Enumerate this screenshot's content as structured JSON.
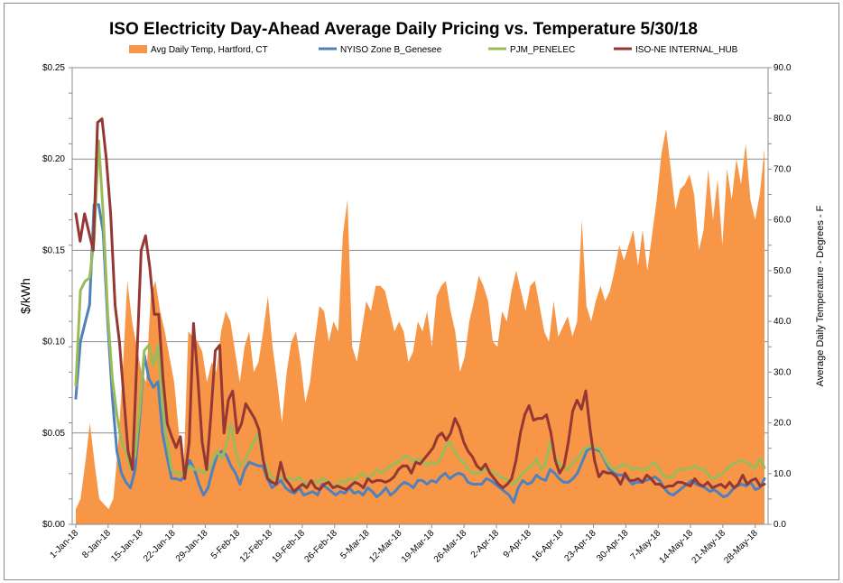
{
  "chart_data": {
    "type": "line",
    "title": "ISO Electricity Day-Ahead Average Daily Pricing vs. Temperature 5/30/18",
    "ylabel": "$/kWh",
    "y2label": "Average Daily Temperature - Degrees - F",
    "ylim": [
      0,
      0.25
    ],
    "y2lim": [
      0,
      90
    ],
    "yticks": [
      "$0.00",
      "$0.05",
      "$0.10",
      "$0.15",
      "$0.20",
      "$0.25"
    ],
    "y2ticks": [
      "0.0",
      "10.0",
      "20.0",
      "30.0",
      "40.0",
      "50.0",
      "60.0",
      "70.0",
      "80.0",
      "90.0"
    ],
    "xticks": [
      "1-Jan-18",
      "8-Jan-18",
      "15-Jan-18",
      "22-Jan-18",
      "29-Jan-18",
      "5-Feb-18",
      "12-Feb-18",
      "19-Feb-18",
      "26-Feb-18",
      "5-Mar-18",
      "12-Mar-18",
      "19-Mar-18",
      "26-Mar-18",
      "2-Apr-18",
      "9-Apr-18",
      "16-Apr-18",
      "23-Apr-18",
      "30-Apr-18",
      "7-May-18",
      "14-May-18",
      "21-May-18",
      "28-May-18"
    ],
    "x_start": "2018-01-01",
    "x_end": "2018-05-30",
    "grid": true,
    "legend_position": "top",
    "series": [
      {
        "name": "Avg Daily Temp, Hartford, CT",
        "kind": "area",
        "axis": "right",
        "color": "#f79646",
        "values": [
          3,
          5,
          12,
          20,
          12,
          5,
          4,
          3,
          5,
          15,
          30,
          48,
          40,
          35,
          30,
          28,
          45,
          48,
          42,
          38,
          33,
          28,
          18,
          10,
          38,
          37,
          36,
          34,
          28,
          32,
          30,
          38,
          42,
          40,
          34,
          28,
          35,
          38,
          30,
          32,
          38,
          45,
          35,
          28,
          20,
          30,
          36,
          38,
          32,
          24,
          28,
          36,
          43,
          42,
          36,
          40,
          38,
          57,
          64,
          35,
          32,
          38,
          44,
          42,
          47,
          47,
          46,
          42,
          38,
          40,
          38,
          32,
          34,
          40,
          38,
          42,
          35,
          45,
          47,
          48,
          42,
          38,
          30,
          33,
          40,
          44,
          49,
          47,
          44,
          36,
          35,
          42,
          40,
          46,
          50,
          46,
          42,
          47,
          48,
          43,
          38,
          36,
          44,
          37,
          39,
          41,
          37,
          40,
          60,
          43,
          40,
          44,
          47,
          44,
          46,
          50,
          55,
          52,
          55,
          58,
          51,
          58,
          50,
          57,
          64,
          73,
          78,
          70,
          62,
          66,
          67,
          69,
          65,
          54,
          58,
          70,
          60,
          68,
          55,
          70,
          64,
          72,
          67,
          75,
          64,
          60,
          65,
          74
        ],
        "display": "#f79646"
      },
      {
        "name": "NYISO Zone B_Genesee",
        "kind": "line",
        "axis": "left",
        "color": "#4f81bd",
        "values": [
          0.069,
          0.1,
          0.11,
          0.12,
          0.175,
          0.175,
          0.16,
          0.11,
          0.07,
          0.04,
          0.028,
          0.023,
          0.02,
          0.03,
          0.058,
          0.093,
          0.08,
          0.075,
          0.078,
          0.05,
          0.037,
          0.025,
          0.025,
          0.024,
          0.027,
          0.035,
          0.03,
          0.022,
          0.016,
          0.02,
          0.03,
          0.038,
          0.04,
          0.038,
          0.032,
          0.028,
          0.022,
          0.03,
          0.034,
          0.033,
          0.032,
          0.032,
          0.025,
          0.02,
          0.022,
          0.024,
          0.02,
          0.018,
          0.017,
          0.02,
          0.016,
          0.017,
          0.018,
          0.016,
          0.022,
          0.02,
          0.018,
          0.016,
          0.018,
          0.017,
          0.02,
          0.017,
          0.018,
          0.016,
          0.02,
          0.018,
          0.015,
          0.017,
          0.02,
          0.016,
          0.018,
          0.021,
          0.023,
          0.022,
          0.02,
          0.024,
          0.024,
          0.022,
          0.024,
          0.023,
          0.026,
          0.028,
          0.025,
          0.027,
          0.028,
          0.027,
          0.023,
          0.022,
          0.022,
          0.022,
          0.025,
          0.024,
          0.022,
          0.02,
          0.018,
          0.016,
          0.012,
          0.02,
          0.024,
          0.022,
          0.023,
          0.027,
          0.025,
          0.024,
          0.03,
          0.028,
          0.025,
          0.023,
          0.023,
          0.025,
          0.028,
          0.034,
          0.04,
          0.042,
          0.041,
          0.04,
          0.035,
          0.03,
          0.028,
          0.027,
          0.027,
          0.025,
          0.022,
          0.023,
          0.023,
          0.024,
          0.025,
          0.026,
          0.024,
          0.02,
          0.017,
          0.016,
          0.018,
          0.02,
          0.022,
          0.024,
          0.022,
          0.021,
          0.02,
          0.018,
          0.019,
          0.017,
          0.015,
          0.016,
          0.019,
          0.021,
          0.022,
          0.021,
          0.023,
          0.019,
          0.02,
          0.025
        ],
        "display": "#4f81bd"
      },
      {
        "name": "PJM_PENELEC",
        "kind": "line",
        "axis": "left",
        "color": "#9bbb59",
        "values": [
          0.076,
          0.128,
          0.133,
          0.135,
          0.155,
          0.21,
          0.17,
          0.115,
          0.08,
          0.06,
          0.045,
          0.04,
          0.03,
          0.038,
          0.063,
          0.095,
          0.098,
          0.087,
          0.098,
          0.065,
          0.045,
          0.03,
          0.028,
          0.028,
          0.027,
          0.032,
          0.03,
          0.03,
          0.028,
          0.03,
          0.035,
          0.04,
          0.036,
          0.043,
          0.055,
          0.04,
          0.032,
          0.035,
          0.04,
          0.045,
          0.05,
          0.036,
          0.03,
          0.025,
          0.025,
          0.026,
          0.025,
          0.025,
          0.024,
          0.026,
          0.023,
          0.022,
          0.024,
          0.023,
          0.025,
          0.024,
          0.022,
          0.02,
          0.024,
          0.023,
          0.025,
          0.024,
          0.026,
          0.028,
          0.025,
          0.027,
          0.03,
          0.028,
          0.03,
          0.032,
          0.033,
          0.035,
          0.037,
          0.037,
          0.034,
          0.036,
          0.035,
          0.032,
          0.034,
          0.033,
          0.036,
          0.042,
          0.045,
          0.04,
          0.036,
          0.034,
          0.03,
          0.028,
          0.028,
          0.029,
          0.03,
          0.029,
          0.028,
          0.026,
          0.025,
          0.024,
          0.022,
          0.025,
          0.028,
          0.03,
          0.032,
          0.036,
          0.03,
          0.033,
          0.045,
          0.038,
          0.033,
          0.031,
          0.03,
          0.034,
          0.036,
          0.04,
          0.042,
          0.043,
          0.042,
          0.041,
          0.036,
          0.032,
          0.03,
          0.031,
          0.033,
          0.032,
          0.03,
          0.031,
          0.03,
          0.03,
          0.032,
          0.034,
          0.03,
          0.026,
          0.026,
          0.026,
          0.03,
          0.03,
          0.03,
          0.031,
          0.032,
          0.03,
          0.03,
          0.026,
          0.025,
          0.027,
          0.028,
          0.031,
          0.033,
          0.034,
          0.035,
          0.034,
          0.032,
          0.031,
          0.036,
          0.031
        ],
        "display": "#9bbb59"
      },
      {
        "name": "ISO-NE INTERNAL_HUB",
        "kind": "line",
        "axis": "left",
        "color": "#953735",
        "values": [
          0.17,
          0.155,
          0.17,
          0.16,
          0.15,
          0.22,
          0.222,
          0.2,
          0.17,
          0.12,
          0.1,
          0.07,
          0.04,
          0.03,
          0.09,
          0.15,
          0.158,
          0.14,
          0.115,
          0.115,
          0.08,
          0.055,
          0.048,
          0.042,
          0.048,
          0.025,
          0.045,
          0.11,
          0.08,
          0.045,
          0.03,
          0.06,
          0.095,
          0.098,
          0.05,
          0.068,
          0.073,
          0.05,
          0.055,
          0.066,
          0.062,
          0.058,
          0.052,
          0.035,
          0.025,
          0.023,
          0.022,
          0.034,
          0.025,
          0.022,
          0.018,
          0.02,
          0.022,
          0.02,
          0.024,
          0.02,
          0.019,
          0.022,
          0.023,
          0.02,
          0.021,
          0.02,
          0.019,
          0.021,
          0.023,
          0.022,
          0.02,
          0.025,
          0.023,
          0.024,
          0.024,
          0.023,
          0.024,
          0.026,
          0.03,
          0.032,
          0.032,
          0.028,
          0.034,
          0.033,
          0.036,
          0.039,
          0.042,
          0.048,
          0.05,
          0.046,
          0.05,
          0.058,
          0.053,
          0.045,
          0.04,
          0.037,
          0.032,
          0.03,
          0.033,
          0.028,
          0.025,
          0.022,
          0.02,
          0.022,
          0.025,
          0.035,
          0.05,
          0.06,
          0.065,
          0.057,
          0.058,
          0.058,
          0.06,
          0.05,
          0.035,
          0.028,
          0.032,
          0.045,
          0.062,
          0.068,
          0.063,
          0.073,
          0.052,
          0.035,
          0.026,
          0.029,
          0.028,
          0.028,
          0.026,
          0.022,
          0.028,
          0.024,
          0.024,
          0.025,
          0.023,
          0.027,
          0.025,
          0.022,
          0.022,
          0.02,
          0.021,
          0.021,
          0.023,
          0.023,
          0.022,
          0.021,
          0.025,
          0.022,
          0.021,
          0.023,
          0.02,
          0.021,
          0.022,
          0.02,
          0.023,
          0.02,
          0.022,
          0.027,
          0.022,
          0.024,
          0.025,
          0.021,
          0.022
        ],
        "display": "#953735"
      }
    ]
  }
}
